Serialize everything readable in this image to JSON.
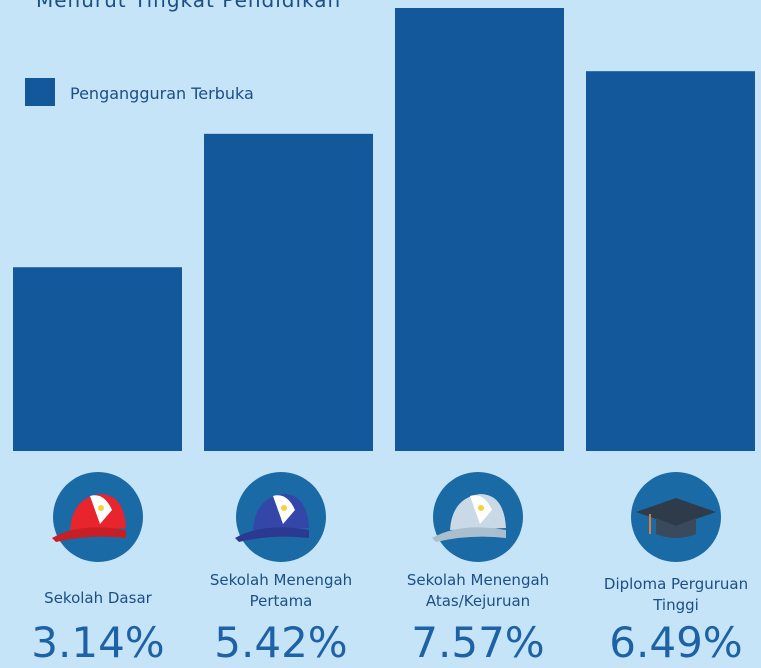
{
  "chart_data": {
    "type": "bar",
    "title": "Menurut Tingkat Pendidikan",
    "legend": "Pengangguran Terbuka",
    "categories": [
      "Sekolah Dasar",
      "Sekolah Menengah Pertama",
      "Sekolah Menengah Atas/Kejuruan",
      "Diploma Perguruan Tinggi"
    ],
    "values": [
      3.14,
      5.42,
      7.57,
      6.49
    ],
    "value_labels": [
      "3.14%",
      "5.42%",
      "7.57%",
      "6.49%"
    ],
    "color": "#12589a"
  }
}
